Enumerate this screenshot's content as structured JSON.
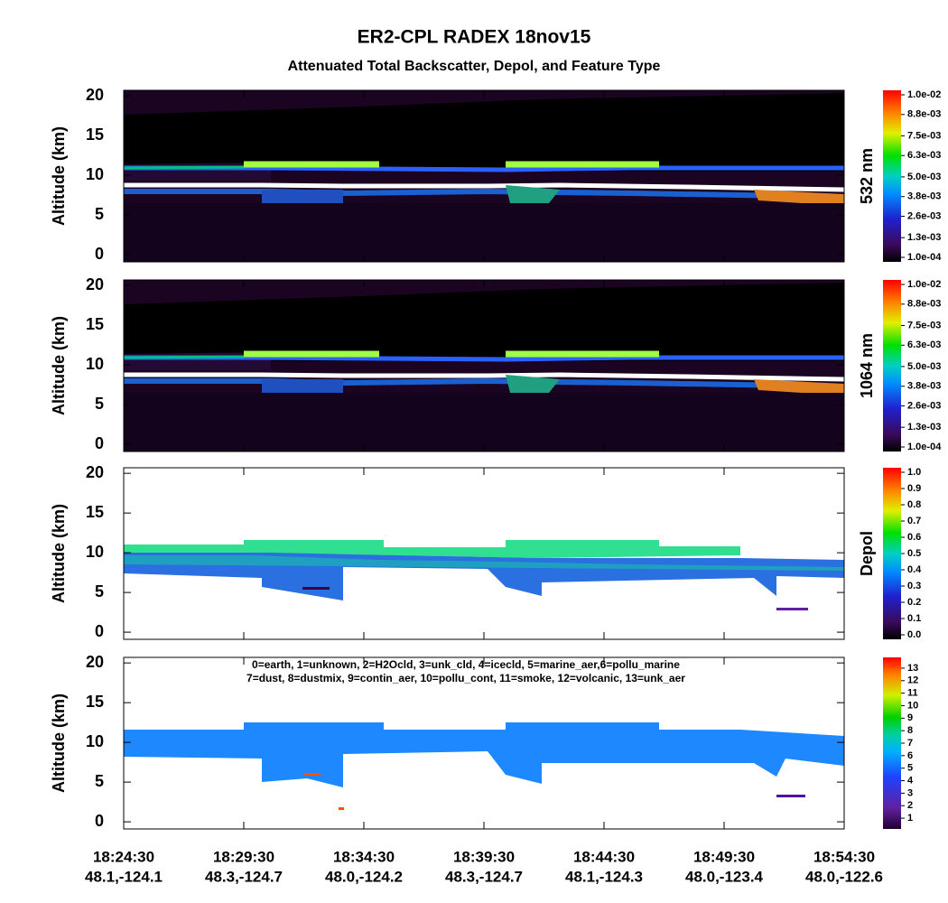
{
  "title": "ER2-CPL RADEX 18nov15",
  "subtitle": "Attenuated Total Backscatter, Depol, and Feature Type",
  "x_ticks": [
    {
      "time": "18:24:30",
      "location": "48.1,-124.1"
    },
    {
      "time": "18:29:30",
      "location": "48.3,-124.7"
    },
    {
      "time": "18:34:30",
      "location": "48.0,-124.2"
    },
    {
      "time": "18:39:30",
      "location": "48.3,-124.7"
    },
    {
      "time": "18:44:30",
      "location": "48.1,-124.3"
    },
    {
      "time": "18:49:30",
      "location": "48.0,-123.4"
    },
    {
      "time": "18:54:30",
      "location": "48.0,-122.6"
    }
  ],
  "chart_data": [
    {
      "type": "heatmap",
      "ylabel": "Altitude (km)",
      "ylim": [
        -0.9,
        20.7
      ],
      "yticks": [
        0,
        5,
        10,
        15,
        20
      ],
      "colorbar": {
        "label": "532 nm",
        "clim": [
          0.0001,
          0.01
        ],
        "ticks": [
          {
            "value": 0.0001,
            "label": "1.0e-04"
          },
          {
            "value": 0.0013,
            "label": "1.3e-03"
          },
          {
            "value": 0.0026,
            "label": "2.6e-03"
          },
          {
            "value": 0.0038,
            "label": "3.8e-03"
          },
          {
            "value": 0.005,
            "label": "5.0e-03"
          },
          {
            "value": 0.0063,
            "label": "6.3e-03"
          },
          {
            "value": 0.0075,
            "label": "7.5e-03"
          },
          {
            "value": 0.0088,
            "label": "8.8e-03"
          },
          {
            "value": 0.01,
            "label": "1.0e-02"
          }
        ]
      }
    },
    {
      "type": "heatmap",
      "ylabel": "Altitude (km)",
      "ylim": [
        -0.9,
        20.7
      ],
      "yticks": [
        0,
        5,
        10,
        15,
        20
      ],
      "colorbar": {
        "label": "1064 nm",
        "clim": [
          0.0001,
          0.01
        ],
        "ticks": [
          {
            "value": 0.0001,
            "label": "1.0e-04"
          },
          {
            "value": 0.0013,
            "label": "1.3e-03"
          },
          {
            "value": 0.0026,
            "label": "2.6e-03"
          },
          {
            "value": 0.0038,
            "label": "3.8e-03"
          },
          {
            "value": 0.005,
            "label": "5.0e-03"
          },
          {
            "value": 0.0063,
            "label": "6.3e-03"
          },
          {
            "value": 0.0075,
            "label": "7.5e-03"
          },
          {
            "value": 0.0088,
            "label": "8.8e-03"
          },
          {
            "value": 0.01,
            "label": "1.0e-02"
          }
        ]
      }
    },
    {
      "type": "heatmap",
      "ylabel": "Altitude (km)",
      "ylim": [
        -0.9,
        20.7
      ],
      "yticks": [
        0,
        5,
        10,
        15,
        20
      ],
      "colorbar": {
        "label": "Depol",
        "clim": [
          0,
          1
        ],
        "ticks": [
          {
            "value": 0,
            "label": "0.0"
          },
          0.1,
          0.2,
          0.3,
          0.4,
          0.5,
          0.6,
          0.7,
          0.8,
          0.9,
          {
            "value": 1,
            "label": "1.0"
          }
        ]
      }
    },
    {
      "type": "heatmap",
      "ylabel": "Altitude (km)",
      "ylim": [
        -0.9,
        20.7
      ],
      "yticks": [
        0,
        5,
        10,
        15,
        20
      ],
      "legend_lines": [
        "0=earth, 1=unknown, 2=H2Ocld, 3=unk_cld, 4=icecld, 5=marine_aer,6=pollu_marine",
        "7=dust, 8=dustmix, 9=contin_aer, 10=pollu_cont, 11=smoke, 12=volcanic, 13=unk_aer"
      ],
      "colorbar": {
        "clim": [
          0.5,
          13.5
        ],
        "ticks": [
          1,
          2,
          3,
          4,
          5,
          6,
          7,
          8,
          9,
          10,
          11,
          12,
          13
        ]
      }
    }
  ]
}
